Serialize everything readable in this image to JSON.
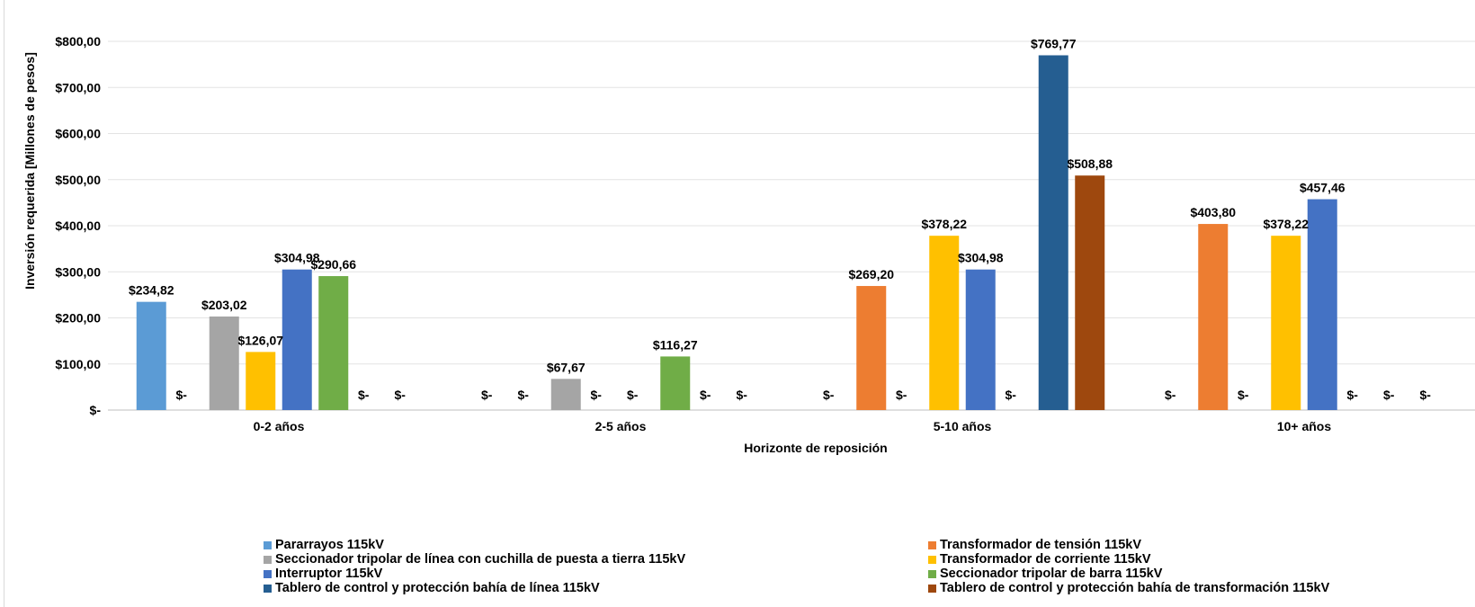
{
  "chart_data": {
    "type": "bar",
    "title": "",
    "xlabel": "Horizonte de reposición",
    "ylabel": "Inversión requerida [Millones de pesos]",
    "ylim": [
      0,
      800
    ],
    "yticks": [
      {
        "value": 0,
        "label": "$-"
      },
      {
        "value": 100,
        "label": "$100,00"
      },
      {
        "value": 200,
        "label": "$200,00"
      },
      {
        "value": 300,
        "label": "$300,00"
      },
      {
        "value": 400,
        "label": "$400,00"
      },
      {
        "value": 500,
        "label": "$500,00"
      },
      {
        "value": 600,
        "label": "$600,00"
      },
      {
        "value": 700,
        "label": "$700,00"
      },
      {
        "value": 800,
        "label": "$800,00"
      }
    ],
    "grid": true,
    "legend_position": "bottom",
    "categories": [
      "0-2 años",
      "2-5 años",
      "5-10 años",
      "10+ años"
    ],
    "series": [
      {
        "name": "Pararrayos 115kV",
        "color": "#5b9bd5",
        "values": [
          234.82,
          0,
          0,
          0
        ],
        "labels": [
          "$234,82",
          "$-",
          "$-",
          "$-"
        ]
      },
      {
        "name": "Transformador de tensión 115kV",
        "color": "#ed7d31",
        "values": [
          0,
          0,
          269.2,
          403.8
        ],
        "labels": [
          "$-",
          "$-",
          "$269,20",
          "$403,80"
        ]
      },
      {
        "name": "Seccionador tripolar de línea con cuchilla de puesta a tierra 115kV",
        "color": "#a5a5a5",
        "values": [
          203.02,
          67.67,
          0,
          0
        ],
        "labels": [
          "$203,02",
          "$67,67",
          "$-",
          "$-"
        ]
      },
      {
        "name": "Transformador de corriente 115kV",
        "color": "#ffc000",
        "values": [
          126.07,
          0,
          378.22,
          378.22
        ],
        "labels": [
          "$126,07",
          "$-",
          "$378,22",
          "$378,22"
        ]
      },
      {
        "name": "Interruptor 115kV",
        "color": "#4472c4",
        "values": [
          304.98,
          0,
          304.98,
          457.46
        ],
        "labels": [
          "$304,98",
          "$-",
          "$304,98",
          "$457,46"
        ]
      },
      {
        "name": "Seccionador tripolar de barra 115kV",
        "color": "#70ad47",
        "values": [
          290.66,
          116.27,
          0,
          0
        ],
        "labels": [
          "$290,66",
          "$116,27",
          "$-",
          "$-"
        ]
      },
      {
        "name": "Tablero de control y protección bahía de línea 115kV",
        "color": "#255e91",
        "values": [
          0,
          0,
          769.77,
          0
        ],
        "labels": [
          "$-",
          "$-",
          "$769,77",
          "$-"
        ]
      },
      {
        "name": "Tablero de control y protección bahía de transformación 115kV",
        "color": "#9e480e",
        "values": [
          0,
          0,
          508.88,
          0
        ],
        "labels": [
          "$-",
          "$-",
          "$508,88",
          "$-"
        ]
      }
    ]
  }
}
